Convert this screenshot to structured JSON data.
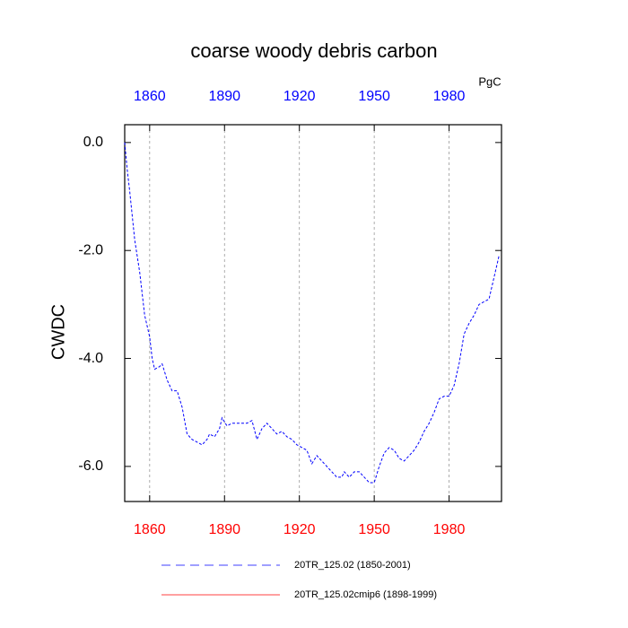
{
  "chart_data": {
    "type": "line",
    "title": "coarse woody debris carbon",
    "y_label": "CWDC",
    "units": "PgC",
    "x": [
      1850,
      1851,
      1852,
      1854,
      1856,
      1858,
      1860,
      1861,
      1862,
      1864,
      1865,
      1867,
      1869,
      1871,
      1873,
      1875,
      1877,
      1879,
      1881,
      1883,
      1884,
      1886,
      1888,
      1889,
      1891,
      1893,
      1895,
      1897,
      1899,
      1901,
      1903,
      1905,
      1907,
      1909,
      1911,
      1913,
      1915,
      1917,
      1919,
      1921,
      1923,
      1925,
      1927,
      1929,
      1931,
      1933,
      1935,
      1937,
      1938,
      1940,
      1942,
      1944,
      1946,
      1948,
      1950,
      1952,
      1954,
      1956,
      1958,
      1960,
      1962,
      1964,
      1966,
      1968,
      1970,
      1972,
      1974,
      1976,
      1978,
      1980,
      1982,
      1984,
      1986,
      1988,
      1990,
      1992,
      1994,
      1996,
      1998,
      2000
    ],
    "series": [
      {
        "name": "20TR_125.02 (1850-2001)",
        "color": "#0000ff",
        "dash": true,
        "values": [
          0.0,
          -0.5,
          -0.9,
          -1.8,
          -2.4,
          -3.2,
          -3.6,
          -4.0,
          -4.2,
          -4.15,
          -4.1,
          -4.4,
          -4.6,
          -4.6,
          -4.9,
          -5.4,
          -5.5,
          -5.55,
          -5.6,
          -5.5,
          -5.4,
          -5.45,
          -5.3,
          -5.1,
          -5.25,
          -5.2,
          -5.2,
          -5.2,
          -5.2,
          -5.15,
          -5.5,
          -5.3,
          -5.2,
          -5.3,
          -5.4,
          -5.35,
          -5.45,
          -5.5,
          -5.6,
          -5.65,
          -5.7,
          -5.95,
          -5.8,
          -5.9,
          -6.0,
          -6.1,
          -6.2,
          -6.2,
          -6.1,
          -6.2,
          -6.1,
          -6.1,
          -6.2,
          -6.3,
          -6.3,
          -6.0,
          -5.75,
          -5.65,
          -5.7,
          -5.85,
          -5.9,
          -5.8,
          -5.7,
          -5.55,
          -5.35,
          -5.2,
          -5.0,
          -4.75,
          -4.7,
          -4.7,
          -4.5,
          -4.1,
          -3.55,
          -3.35,
          -3.2,
          -3.0,
          -2.95,
          -2.9,
          -2.5,
          -2.1
        ]
      },
      {
        "name": "20TR_125.02cmip6 (1898-1999)",
        "color": "#ff0000",
        "dash": false,
        "values": [
          null,
          null,
          null,
          null,
          null,
          null,
          null,
          null,
          null,
          null,
          null,
          null,
          null,
          null,
          null,
          null,
          null,
          null,
          null,
          null,
          null,
          null,
          null,
          null,
          null,
          null,
          null,
          null,
          null,
          null,
          null,
          null,
          null,
          null,
          null,
          null,
          null,
          null,
          null,
          null,
          null,
          null,
          null,
          null,
          null,
          null,
          null,
          null,
          null,
          null,
          null,
          null,
          null,
          null,
          null,
          null,
          null,
          null,
          null,
          null,
          null,
          null,
          null,
          null,
          null,
          null,
          null,
          null,
          null,
          null,
          null,
          null,
          null,
          null,
          null,
          null,
          null,
          null,
          null,
          null
        ]
      }
    ],
    "xlim": [
      1850,
      2001
    ],
    "xticks": [
      1860,
      1890,
      1920,
      1950,
      1980
    ],
    "ylim": [
      -6.65,
      0.33
    ],
    "yticks": [
      {
        "value": 0,
        "label": "0.0"
      },
      {
        "value": -2,
        "label": "-2.0"
      },
      {
        "value": -4,
        "label": "-4.0"
      },
      {
        "value": -6,
        "label": "-6.0"
      }
    ],
    "grid": "x"
  }
}
